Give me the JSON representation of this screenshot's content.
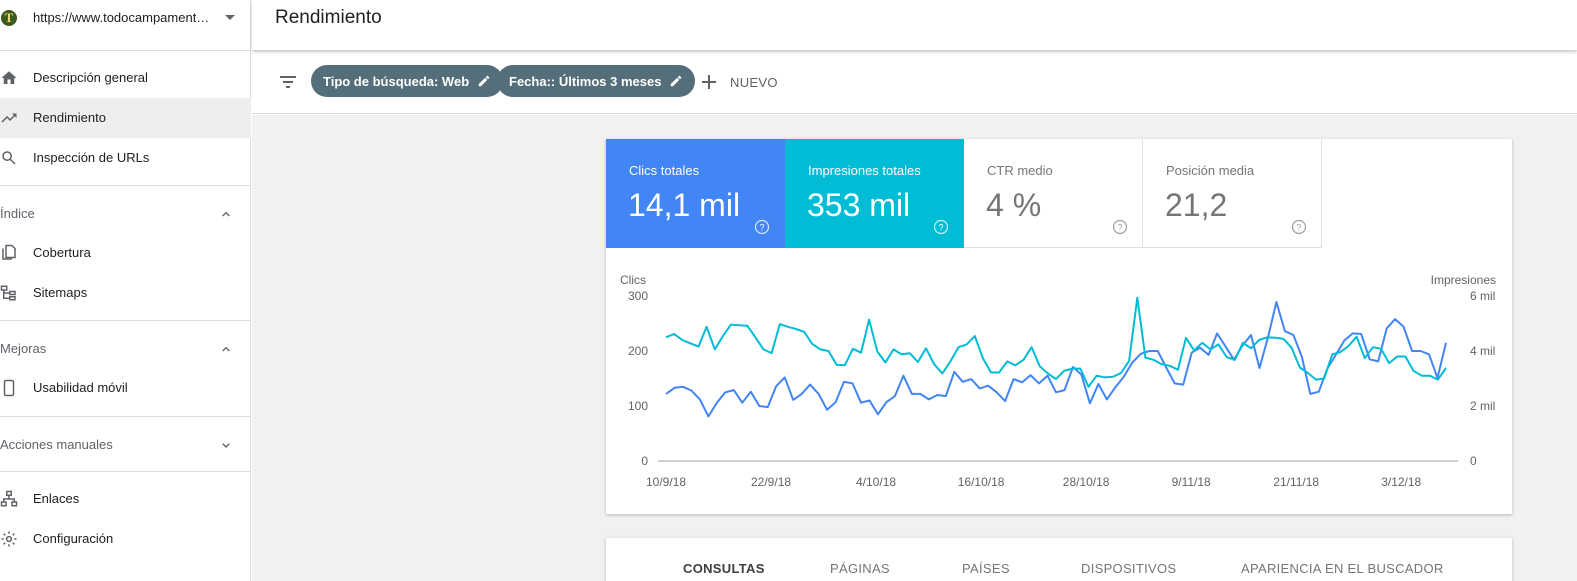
{
  "property": {
    "url": "https://www.todocampament…",
    "logo_letter": "T"
  },
  "nav": {
    "overview": "Descripción general",
    "performance": "Rendimiento",
    "url_inspection": "Inspección de URLs",
    "index_section": "Índice",
    "coverage": "Cobertura",
    "sitemaps": "Sitemaps",
    "enhancements_section": "Mejoras",
    "mobile_usability": "Usabilidad móvil",
    "manual_actions_section": "Acciones manuales",
    "links": "Enlaces",
    "settings": "Configuración"
  },
  "header": {
    "title": "Rendimiento"
  },
  "filters": {
    "chips": [
      "Tipo de búsqueda: Web",
      "Fecha:: Últimos 3 meses"
    ],
    "new_label": "NUEVO"
  },
  "metrics": [
    {
      "label": "Clics totales",
      "value": "14,1 mil",
      "color": "#4285f4"
    },
    {
      "label": "Impresiones totales",
      "value": "353 mil",
      "color": "#00bcd4"
    },
    {
      "label": "CTR medio",
      "value": "4 %"
    },
    {
      "label": "Posición media",
      "value": "21,2"
    }
  ],
  "chart_data": {
    "type": "line",
    "ylabel_left": "Clics",
    "ylabel_right": "Impresiones",
    "y_ticks_left": [
      "0",
      "100",
      "200",
      "300"
    ],
    "y_ticks_right": [
      "0",
      "2 mil",
      "4 mil",
      "6 mil"
    ],
    "ylim_left": [
      0,
      300
    ],
    "ylim_right": [
      0,
      6000
    ],
    "x_ticks": [
      "10/9/18",
      "22/9/18",
      "4/10/18",
      "16/10/18",
      "28/10/18",
      "9/11/18",
      "21/11/18",
      "3/12/18"
    ],
    "grid": "baseline only",
    "series": [
      {
        "name": "Clics",
        "color": "#4285f4",
        "axis": "left",
        "values": [
          122,
          133,
          135,
          128,
          112,
          81,
          106,
          125,
          129,
          106,
          126,
          100,
          98,
          136,
          152,
          111,
          122,
          139,
          122,
          93,
          107,
          144,
          141,
          106,
          110,
          85,
          107,
          118,
          155,
          122,
          122,
          112,
          120,
          118,
          162,
          144,
          149,
          132,
          137,
          125,
          109,
          149,
          143,
          156,
          141,
          155,
          125,
          129,
          171,
          157,
          105,
          140,
          112,
          134,
          153,
          179,
          195,
          200,
          200,
          170,
          141,
          139,
          197,
          206,
          193,
          232,
          208,
          184,
          210,
          229,
          169,
          225,
          289,
          236,
          229,
          189,
          122,
          126,
          168,
          193,
          219,
          232,
          231,
          185,
          181,
          241,
          258,
          244,
          200,
          200,
          194,
          151,
          215
        ]
      },
      {
        "name": "Impresiones",
        "color": "#00bcd4",
        "axis": "left",
        "values": [
          225,
          231,
          220,
          214,
          208,
          244,
          203,
          227,
          248,
          247,
          246,
          225,
          203,
          196,
          249,
          244,
          240,
          235,
          213,
          203,
          200,
          175,
          174,
          204,
          197,
          257,
          199,
          179,
          203,
          194,
          196,
          180,
          205,
          176,
          159,
          181,
          207,
          212,
          227,
          187,
          161,
          161,
          181,
          174,
          184,
          207,
          172,
          159,
          149,
          164,
          168,
          168,
          135,
          155,
          152,
          153,
          160,
          182,
          297,
          188,
          184,
          176,
          173,
          166,
          224,
          201,
          215,
          203,
          212,
          189,
          184,
          215,
          205,
          220,
          225,
          224,
          222,
          206,
          170,
          160,
          148,
          150,
          194,
          198,
          209,
          226,
          187,
          207,
          204,
          178,
          190,
          190,
          164,
          155,
          155,
          148,
          169
        ]
      }
    ]
  },
  "tabs": [
    "CONSULTAS",
    "PÁGINAS",
    "PAÍSES",
    "DISPOSITIVOS",
    "APARIENCIA EN EL BUSCADOR"
  ]
}
